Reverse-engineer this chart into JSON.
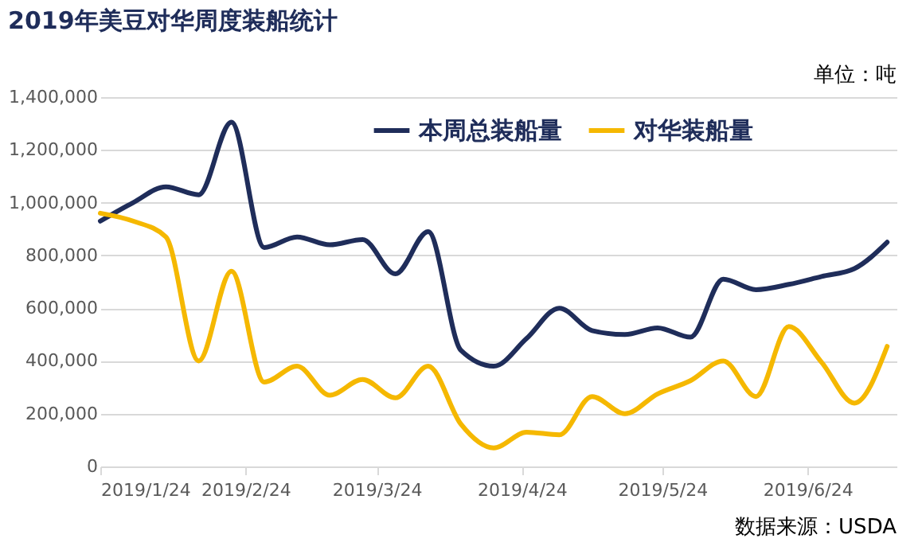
{
  "chart_data": {
    "type": "line",
    "title": "2019年美豆对华周度装船统计",
    "annotations": [
      "单位：吨",
      "数据来源：USDA"
    ],
    "x": [
      "2019-01-24",
      "2019-01-31",
      "2019-02-07",
      "2019-02-14",
      "2019-02-21",
      "2019-02-28",
      "2019-03-07",
      "2019-03-14",
      "2019-03-21",
      "2019-03-28",
      "2019-04-04",
      "2019-04-11",
      "2019-04-18",
      "2019-04-25",
      "2019-05-02",
      "2019-05-09",
      "2019-05-16",
      "2019-05-23",
      "2019-05-30",
      "2019-06-06",
      "2019-06-13",
      "2019-06-20",
      "2019-06-27",
      "2019-07-04",
      "2019-07-11"
    ],
    "series": [
      {
        "name": "本周总装船量",
        "color": "#1f2d5a",
        "values": [
          930000,
          1000000,
          1060000,
          1030000,
          1305000,
          830000,
          870000,
          840000,
          860000,
          730000,
          890000,
          440000,
          380000,
          485000,
          600000,
          515000,
          500000,
          525000,
          490000,
          710000,
          670000,
          690000,
          720000,
          750000,
          850000
        ]
      },
      {
        "name": "对华装船量",
        "color": "#f5b800",
        "values": [
          960000,
          930000,
          870000,
          400000,
          740000,
          320000,
          380000,
          270000,
          330000,
          260000,
          380000,
          160000,
          70000,
          130000,
          120000,
          265000,
          200000,
          275000,
          325000,
          400000,
          265000,
          530000,
          395000,
          240000,
          455000
        ]
      }
    ],
    "xlim": [
      "2019-01-24",
      "2019-07-13"
    ],
    "xticks": [
      {
        "value": "2019-01-24",
        "label": "2019/1/24"
      },
      {
        "value": "2019-02-24",
        "label": "2019/2/24"
      },
      {
        "value": "2019-03-24",
        "label": "2019/3/24"
      },
      {
        "value": "2019-04-24",
        "label": "2019/4/24"
      },
      {
        "value": "2019-05-24",
        "label": "2019/5/24"
      },
      {
        "value": "2019-06-24",
        "label": "2019/6/24"
      }
    ],
    "ylim": [
      0,
      1400000
    ],
    "yticks": [
      {
        "value": 0,
        "label": "0"
      },
      {
        "value": 200000,
        "label": "200,000"
      },
      {
        "value": 400000,
        "label": "400,000"
      },
      {
        "value": 600000,
        "label": "600,000"
      },
      {
        "value": 800000,
        "label": "800,000"
      },
      {
        "value": 1000000,
        "label": "1,000,000"
      },
      {
        "value": 1200000,
        "label": "1,200,000"
      },
      {
        "value": 1400000,
        "label": "1,400,000"
      }
    ],
    "grid": "y",
    "legend": "top",
    "marker": "none",
    "line_style": "solid"
  }
}
